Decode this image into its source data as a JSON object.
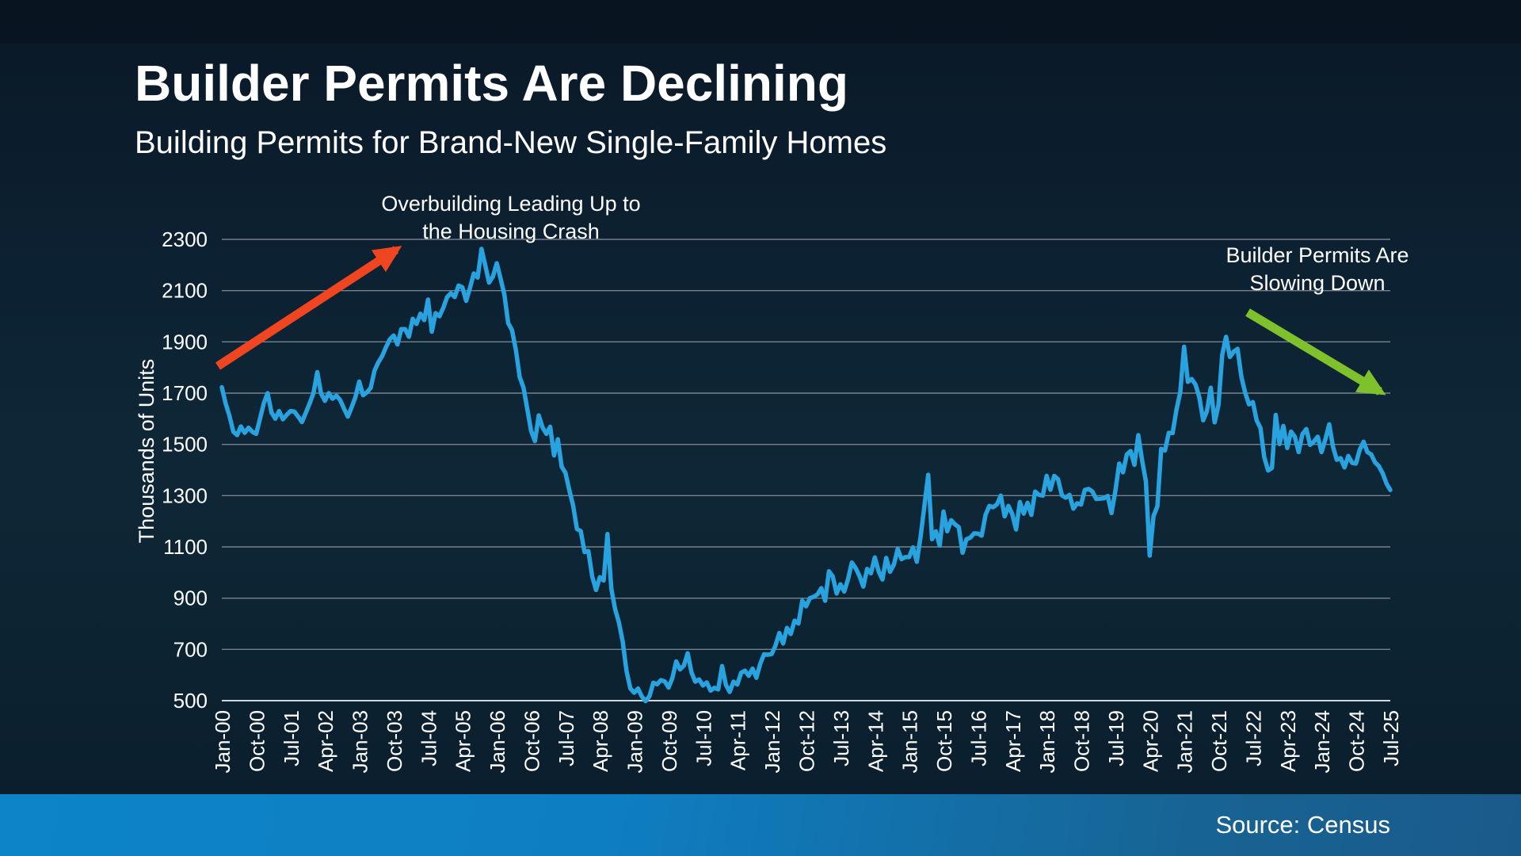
{
  "slide": {
    "title": "Builder Permits Are Declining",
    "subtitle": "Building Permits for Brand-New Single-Family Homes",
    "source": "Source: Census"
  },
  "annotations": {
    "overbuilding": "Overbuilding Leading Up to\nthe Housing Crash",
    "slowing": "Builder Permits Are\nSlowing Down"
  },
  "colors": {
    "line": "#29a3e0",
    "red_arrow": "#f04521",
    "green_arrow": "#7fc12c",
    "gridline": "#b7bcc1",
    "axis_line": "#dde1e4",
    "text": "#ffffff",
    "background": "#0d2433",
    "footer_left": "#0d84c8",
    "footer_right": "#1a5a8b"
  },
  "chart_data": {
    "type": "line",
    "title": "Builder Permits Are Declining",
    "subtitle": "Building Permits for Brand-New Single-Family Homes",
    "xlabel": "",
    "ylabel": "Thousands of Units",
    "ylim": [
      500,
      2300
    ],
    "ytick_step": 200,
    "grid": true,
    "legend": false,
    "x_start": "Jan-00",
    "x_end": "Jul-25",
    "x_frequency": "monthly",
    "x_tick_interval": 9,
    "x_tick_labels": [
      "Jan-00",
      "Oct-00",
      "Jul-01",
      "Apr-02",
      "Jan-03",
      "Oct-03",
      "Jul-04",
      "Apr-05",
      "Jan-06",
      "Oct-06",
      "Jul-07",
      "Apr-08",
      "Jan-09",
      "Oct-09",
      "Jul-10",
      "Apr-11",
      "Jan-12",
      "Oct-12",
      "Jul-13",
      "Apr-14",
      "Jan-15",
      "Oct-15",
      "Jul-16",
      "Apr-17",
      "Jan-18",
      "Oct-18",
      "Jul-19",
      "Apr-20",
      "Jan-21",
      "Oct-21",
      "Jul-22",
      "Apr-23",
      "Jan-24",
      "Oct-24",
      "Jul-25"
    ],
    "series": [
      {
        "name": "Building Permits (Thousands of Units)",
        "values": [
          1723,
          1660,
          1612,
          1550,
          1536,
          1570,
          1545,
          1565,
          1549,
          1541,
          1600,
          1660,
          1700,
          1625,
          1600,
          1630,
          1598,
          1615,
          1630,
          1628,
          1608,
          1587,
          1623,
          1660,
          1700,
          1782,
          1698,
          1670,
          1700,
          1678,
          1690,
          1673,
          1640,
          1608,
          1645,
          1685,
          1745,
          1692,
          1703,
          1721,
          1788,
          1820,
          1845,
          1880,
          1910,
          1925,
          1890,
          1950,
          1950,
          1920,
          1990,
          1970,
          2010,
          1985,
          2065,
          1940,
          2012,
          2000,
          2033,
          2075,
          2090,
          2075,
          2120,
          2113,
          2060,
          2111,
          2167,
          2151,
          2263,
          2198,
          2131,
          2155,
          2207,
          2147,
          2084,
          1973,
          1946,
          1869,
          1763,
          1722,
          1638,
          1553,
          1513,
          1613,
          1566,
          1541,
          1569,
          1457,
          1520,
          1413,
          1389,
          1322,
          1261,
          1170,
          1162,
          1080,
          1084,
          984,
          932,
          982,
          969,
          1150,
          937,
          857,
          805,
          730,
          615,
          547,
          531,
          547,
          516,
          498,
          518,
          570,
          564,
          580,
          575,
          551,
          589,
          653,
          622,
          637,
          685,
          610,
          574,
          583,
          559,
          571,
          539,
          550,
          544,
          635,
          562,
          534,
          574,
          563,
          609,
          617,
          597,
          625,
          589,
          644,
          681,
          679,
          682,
          715,
          764,
          723,
          784,
          760,
          812,
          801,
          890,
          868,
          900,
          905,
          915,
          939,
          890,
          1005,
          985,
          918,
          954,
          926,
          974,
          1039,
          1017,
          986,
          945,
          1014,
          997,
          1059,
          1005,
          973,
          1057,
          1003,
          1031,
          1092,
          1052,
          1060,
          1060,
          1098,
          1042,
          1140,
          1260,
          1381,
          1130,
          1161,
          1105,
          1238,
          1161,
          1204,
          1188,
          1177,
          1077,
          1130,
          1136,
          1153,
          1152,
          1144,
          1225,
          1260,
          1255,
          1266,
          1300,
          1219,
          1260,
          1228,
          1168,
          1275,
          1230,
          1272,
          1225,
          1316,
          1303,
          1300,
          1377,
          1323,
          1377,
          1364,
          1301,
          1292,
          1303,
          1249,
          1270,
          1265,
          1322,
          1326,
          1316,
          1287,
          1288,
          1290,
          1299,
          1232,
          1317,
          1425,
          1391,
          1461,
          1474,
          1420,
          1536,
          1438,
          1356,
          1066,
          1220,
          1258,
          1483,
          1476,
          1545,
          1544,
          1635,
          1704,
          1881,
          1744,
          1755,
          1733,
          1683,
          1594,
          1630,
          1721,
          1586,
          1653,
          1850,
          1920,
          1841,
          1862,
          1873,
          1764,
          1702,
          1656,
          1665,
          1594,
          1564,
          1450,
          1398,
          1408,
          1615,
          1501,
          1572,
          1486,
          1550,
          1530,
          1470,
          1540,
          1560,
          1498,
          1511,
          1530,
          1470,
          1520,
          1578,
          1490,
          1440,
          1446,
          1410,
          1455,
          1428,
          1425,
          1479,
          1510,
          1470,
          1461,
          1430,
          1415,
          1387,
          1347,
          1322
        ]
      }
    ]
  }
}
